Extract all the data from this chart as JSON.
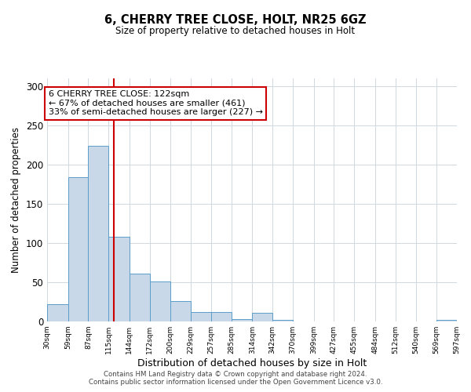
{
  "title": "6, CHERRY TREE CLOSE, HOLT, NR25 6GZ",
  "subtitle": "Size of property relative to detached houses in Holt",
  "xlabel": "Distribution of detached houses by size in Holt",
  "ylabel": "Number of detached properties",
  "bar_edges": [
    30,
    59,
    87,
    115,
    144,
    172,
    200,
    229,
    257,
    285,
    314,
    342,
    370,
    399,
    427,
    455,
    484,
    512,
    540,
    569,
    597
  ],
  "bar_heights": [
    22,
    184,
    224,
    108,
    61,
    51,
    26,
    12,
    12,
    3,
    11,
    2,
    0,
    0,
    0,
    0,
    0,
    0,
    0,
    2
  ],
  "bar_color": "#c8d8e8",
  "bar_edge_color": "#5a9ec9",
  "vline_x": 122,
  "vline_color": "#cc0000",
  "ylim": [
    0,
    310
  ],
  "yticks": [
    0,
    50,
    100,
    150,
    200,
    250,
    300
  ],
  "annotation_text": "6 CHERRY TREE CLOSE: 122sqm\n← 67% of detached houses are smaller (461)\n33% of semi-detached houses are larger (227) →",
  "annotation_box_color": "#ffffff",
  "annotation_box_edge_color": "#cc0000",
  "footer_line1": "Contains HM Land Registry data © Crown copyright and database right 2024.",
  "footer_line2": "Contains public sector information licensed under the Open Government Licence v3.0.",
  "background_color": "#ffffff",
  "grid_color": "#d0d8e0"
}
